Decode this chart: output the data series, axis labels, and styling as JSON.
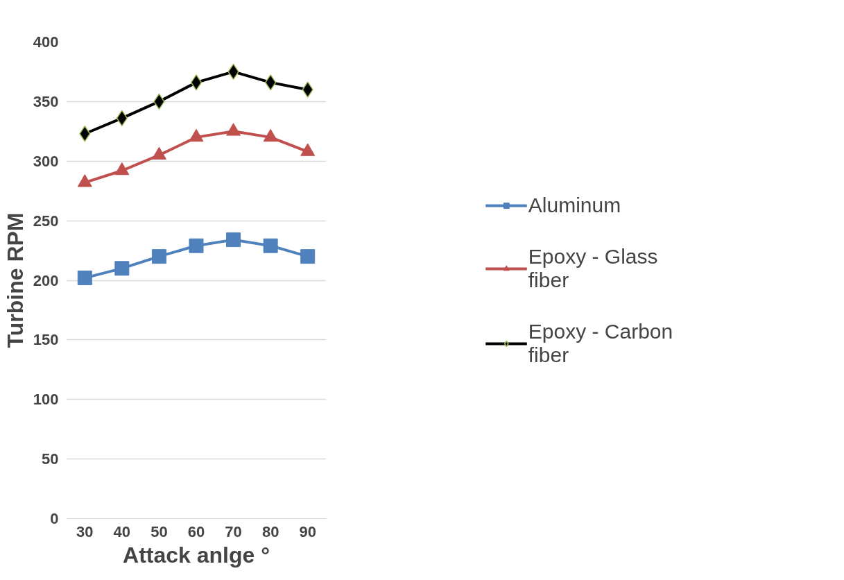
{
  "chart_data": {
    "type": "line",
    "xlabel": "Attack anlge °",
    "ylabel": "Turbine RPM",
    "categories": [
      "30",
      "40",
      "50",
      "60",
      "70",
      "80",
      "90"
    ],
    "ylim": [
      0,
      400
    ],
    "yticks": [
      0,
      50,
      100,
      150,
      200,
      250,
      300,
      350,
      400
    ],
    "grid": "y",
    "legend": "right",
    "line_style": "solid",
    "series": [
      {
        "name": "Aluminum",
        "color": "#4f81bd",
        "marker": "square",
        "values": [
          202,
          210,
          220,
          229,
          234,
          229,
          220
        ]
      },
      {
        "name": "Epoxy - Glass fiber",
        "color": "#c0504d",
        "marker": "triangle",
        "values": [
          282,
          292,
          305,
          320,
          325,
          320,
          308
        ]
      },
      {
        "name": "Epoxy - Carbon fiber",
        "color": "#000000",
        "marker": "diamond",
        "values": [
          323,
          336,
          350,
          366,
          375,
          366,
          360
        ]
      }
    ]
  }
}
